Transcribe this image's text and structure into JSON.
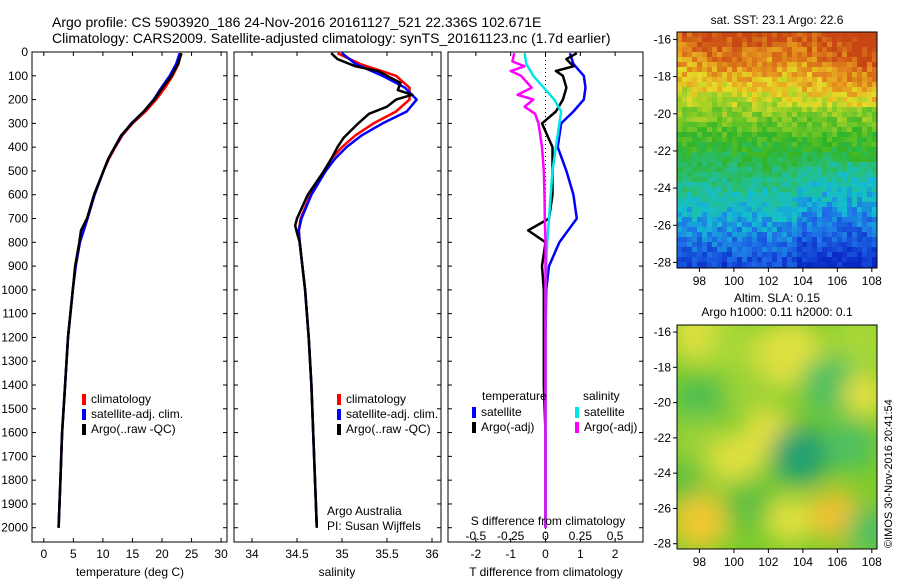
{
  "header": {
    "line1": "Argo profile: CS 5903920_186 24-Nov-2016 20161127_521 22.336S 102.671E",
    "line2": "Climatology: CARS2009. Satellite-adjusted climatology: synTS_20161123.nc (1.7d earlier)"
  },
  "side_text": "©IMOS 30-Nov-2016 20:41:54",
  "colors": {
    "climatology": "#ff0000",
    "satellite": "#0000ff",
    "argo": "#000000",
    "sat_salinity": "#00e5e5",
    "argo_salinity": "#ff00ff"
  },
  "chart_data": [
    {
      "type": "line",
      "id": "temperature",
      "xlabel": "temperature (deg C)",
      "ylabel": "",
      "xlim": [
        -2,
        31
      ],
      "ylim": [
        2060,
        0
      ],
      "xticks": [
        0,
        5,
        10,
        15,
        20,
        25,
        30
      ],
      "yticks": [
        0,
        100,
        200,
        300,
        400,
        500,
        600,
        700,
        800,
        900,
        1000,
        1100,
        1200,
        1300,
        1400,
        1500,
        1600,
        1700,
        1800,
        1900,
        2000
      ],
      "legend": {
        "items": [
          "climatology",
          "satellite-adj. clim.",
          "Argo(..raw -QC)"
        ]
      },
      "series": [
        {
          "name": "climatology",
          "color": "#ff0000",
          "depth": [
            5,
            50,
            100,
            150,
            200,
            250,
            300,
            350,
            400,
            450,
            500,
            600,
            700,
            800,
            900,
            1000,
            1200,
            1400,
            1600,
            1800,
            2000
          ],
          "values": [
            23.2,
            22.8,
            21.8,
            20.5,
            19.0,
            17.2,
            15.0,
            13.3,
            12.1,
            11.0,
            10.1,
            8.6,
            7.4,
            6.1,
            5.4,
            4.9,
            4.1,
            3.6,
            3.1,
            2.8,
            2.5
          ]
        },
        {
          "name": "satellite-adj. clim.",
          "color": "#0000ff",
          "depth": [
            5,
            50,
            100,
            150,
            200,
            250,
            300,
            350,
            400,
            450,
            500,
            600,
            700,
            800,
            900,
            1000,
            1200,
            1400,
            1600,
            1800,
            2000
          ],
          "values": [
            23.0,
            22.4,
            21.3,
            19.9,
            18.6,
            16.9,
            14.8,
            13.2,
            12.0,
            10.9,
            10.1,
            8.6,
            7.4,
            6.1,
            5.4,
            4.9,
            4.1,
            3.6,
            3.1,
            2.8,
            2.5
          ]
        },
        {
          "name": "Argo(..raw -QC)",
          "color": "#000000",
          "depth": [
            5,
            50,
            100,
            150,
            200,
            250,
            300,
            350,
            400,
            450,
            500,
            600,
            700,
            750,
            800,
            900,
            1000,
            1200,
            1400,
            1600,
            1800,
            2000
          ],
          "values": [
            23.3,
            22.7,
            21.6,
            20.1,
            18.7,
            16.9,
            14.9,
            13.1,
            12.0,
            10.9,
            10.1,
            8.5,
            7.3,
            6.3,
            6.0,
            5.3,
            4.9,
            4.1,
            3.6,
            3.1,
            2.8,
            2.5
          ]
        }
      ]
    },
    {
      "type": "line",
      "id": "salinity",
      "xlabel": "salinity",
      "ylabel": "",
      "xlim": [
        33.8,
        36.1
      ],
      "ylim": [
        2060,
        0
      ],
      "xticks": [
        34,
        34.5,
        35,
        35.5,
        36
      ],
      "xticklabels": [
        "34",
        "34.5",
        "35",
        "35.5",
        "36"
      ],
      "legend": {
        "items": [
          "climatology",
          "satellite-adj. clim.",
          "Argo(..raw -QC)"
        ]
      },
      "annotations": [
        "Argo Australia",
        "PI: Susan Wijffels"
      ],
      "series": [
        {
          "name": "climatology",
          "color": "#ff0000",
          "depth": [
            5,
            50,
            100,
            150,
            200,
            250,
            300,
            350,
            400,
            450,
            500,
            600,
            700,
            750,
            800,
            900,
            1000,
            1200,
            1400,
            1600,
            1800,
            2000
          ],
          "values": [
            34.95,
            35.2,
            35.6,
            35.75,
            35.75,
            35.6,
            35.35,
            35.15,
            35.0,
            34.88,
            34.8,
            34.65,
            34.54,
            34.52,
            34.53,
            34.56,
            34.59,
            34.63,
            34.66,
            34.68,
            34.7,
            34.72
          ]
        },
        {
          "name": "satellite-adj. clim.",
          "color": "#0000ff",
          "depth": [
            5,
            50,
            100,
            150,
            200,
            250,
            300,
            350,
            400,
            450,
            500,
            600,
            700,
            750,
            800,
            900,
            1000,
            1200,
            1400,
            1600,
            1800,
            2000
          ],
          "values": [
            35.0,
            35.15,
            35.45,
            35.7,
            35.83,
            35.72,
            35.45,
            35.22,
            35.05,
            34.92,
            34.82,
            34.66,
            34.55,
            34.52,
            34.53,
            34.56,
            34.59,
            34.63,
            34.66,
            34.68,
            34.7,
            34.72
          ]
        },
        {
          "name": "Argo(..raw -QC)",
          "color": "#000000",
          "depth": [
            5,
            30,
            60,
            80,
            100,
            130,
            160,
            180,
            200,
            230,
            260,
            300,
            330,
            360,
            400,
            450,
            500,
            600,
            700,
            730,
            760,
            800,
            900,
            1000,
            1200,
            1400,
            1600,
            1800,
            2000
          ],
          "values": [
            34.88,
            34.95,
            35.15,
            35.4,
            35.5,
            35.65,
            35.62,
            35.78,
            35.6,
            35.5,
            35.3,
            35.18,
            35.1,
            35.02,
            34.95,
            34.88,
            34.8,
            34.62,
            34.5,
            34.48,
            34.5,
            34.53,
            34.56,
            34.59,
            34.63,
            34.66,
            34.68,
            34.7,
            34.72
          ]
        }
      ]
    },
    {
      "type": "line",
      "id": "difference",
      "xlabel": "T difference from climatology",
      "xlabel2": "S difference from climatology",
      "xlim": [
        -2.8,
        2.8
      ],
      "ylim": [
        2060,
        0
      ],
      "xticks": [
        -2,
        -1,
        0,
        1,
        2
      ],
      "xticks2": [
        -0.5,
        -0.25,
        0,
        0.25,
        0.5
      ],
      "legend": {
        "temperature": {
          "title": "temperature",
          "items": [
            "satellite",
            "Argo(-adj)"
          ]
        },
        "salinity": {
          "title": "salinity",
          "items": [
            "satellite",
            "Argo(-adj)"
          ]
        }
      },
      "series": [
        {
          "name": "temperature satellite",
          "color": "#0000ff",
          "depth": [
            5,
            50,
            100,
            150,
            200,
            250,
            300,
            400,
            500,
            600,
            700,
            800,
            900,
            1000,
            1200,
            1500,
            2000
          ],
          "values": [
            0.7,
            0.8,
            1.1,
            1.15,
            1.1,
            0.8,
            0.45,
            0.35,
            0.6,
            0.8,
            0.9,
            0.4,
            0.1,
            0.02,
            0.0,
            0.0,
            0.0
          ]
        },
        {
          "name": "temperature Argo(-adj)",
          "color": "#000000",
          "depth": [
            5,
            30,
            60,
            80,
            100,
            150,
            200,
            250,
            300,
            400,
            500,
            600,
            700,
            750,
            800,
            900,
            1000,
            1200,
            1400,
            1600,
            2000
          ],
          "values": [
            0.9,
            0.6,
            0.8,
            0.3,
            0.5,
            0.6,
            0.5,
            0.3,
            -0.1,
            0.2,
            0.2,
            0.2,
            0.1,
            -0.5,
            0.0,
            -0.1,
            -0.05,
            -0.05,
            -0.05,
            0.0,
            0.0
          ]
        },
        {
          "name": "salinity satellite",
          "color": "#00e5e5",
          "depth": [
            5,
            50,
            100,
            150,
            200,
            250,
            300,
            400,
            500,
            600,
            700,
            800,
            900,
            1000,
            1200,
            1500,
            2000
          ],
          "values": [
            -0.6,
            -0.55,
            -0.35,
            -0.05,
            0.25,
            0.45,
            0.4,
            0.3,
            0.2,
            0.15,
            0.1,
            0.05,
            0.02,
            0.0,
            0.0,
            0.0,
            0.0
          ]
        },
        {
          "name": "salinity Argo(-adj)",
          "color": "#ff00ff",
          "depth": [
            5,
            40,
            60,
            80,
            100,
            150,
            180,
            200,
            230,
            260,
            300,
            400,
            500,
            600,
            700,
            800,
            900,
            1000,
            1200,
            1500,
            2000
          ],
          "values": [
            -0.9,
            -0.95,
            -0.6,
            -1.0,
            -0.7,
            -0.4,
            -0.8,
            -0.35,
            -0.6,
            -0.3,
            -0.2,
            -0.1,
            -0.05,
            -0.03,
            -0.02,
            0.0,
            0.0,
            0.0,
            0.0,
            0.0,
            0.0
          ]
        }
      ]
    },
    {
      "type": "heatmap",
      "id": "sst_map",
      "title": "sat. SST: 23.1  Argo: 22.6",
      "xlim": [
        96.7,
        108.3
      ],
      "ylim": [
        -28.3,
        -15.6
      ],
      "xticks": [
        98,
        100,
        102,
        104,
        106,
        108
      ],
      "yticks": [
        -16,
        -18,
        -20,
        -22,
        -24,
        -26,
        -28
      ],
      "marker": {
        "lon": 102.671,
        "lat": -22.336
      }
    },
    {
      "type": "heatmap",
      "id": "sla_map",
      "title": "Altim. SLA: 0.15",
      "title2": "Argo h1000: 0.11 h2000: 0.1",
      "xlim": [
        96.7,
        108.3
      ],
      "ylim": [
        -28.3,
        -15.6
      ],
      "xticks": [
        98,
        100,
        102,
        104,
        106,
        108
      ],
      "yticks": [
        -16,
        -18,
        -20,
        -22,
        -24,
        -26,
        -28
      ],
      "marker": {
        "lon": 102.671,
        "lat": -22.336
      }
    }
  ]
}
